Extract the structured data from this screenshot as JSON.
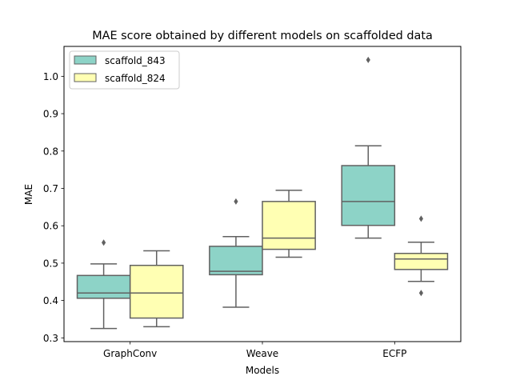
{
  "chart_data": {
    "type": "box",
    "title": "MAE score obtained by different models on scaffolded data",
    "xlabel": "Models",
    "ylabel": "MAE",
    "categories": [
      "GraphConv",
      "Weave",
      "ECFP"
    ],
    "ylim": [
      0.29,
      1.08
    ],
    "yticks": [
      0.3,
      0.4,
      0.5,
      0.6,
      0.7,
      0.8,
      0.9,
      1.0
    ],
    "ytick_labels": [
      "0.3",
      "0.4",
      "0.5",
      "0.6",
      "0.7",
      "0.8",
      "0.9",
      "1.0"
    ],
    "grid": false,
    "legend_position": "top-left",
    "series": [
      {
        "name": "scaffold_843",
        "color": "#8dd3c7",
        "boxes": [
          {
            "whisker_low": 0.325,
            "q1": 0.406,
            "median": 0.42,
            "q3": 0.467,
            "whisker_high": 0.498,
            "outliers": [
              0.555
            ]
          },
          {
            "whisker_low": 0.382,
            "q1": 0.469,
            "median": 0.478,
            "q3": 0.545,
            "whisker_high": 0.571,
            "outliers": [
              0.665
            ]
          },
          {
            "whisker_low": 0.567,
            "q1": 0.601,
            "median": 0.665,
            "q3": 0.761,
            "whisker_high": 0.814,
            "outliers": [
              1.044
            ]
          }
        ]
      },
      {
        "name": "scaffold_824",
        "color": "#ffffb3",
        "boxes": [
          {
            "whisker_low": 0.33,
            "q1": 0.353,
            "median": 0.42,
            "q3": 0.494,
            "whisker_high": 0.533,
            "outliers": []
          },
          {
            "whisker_low": 0.516,
            "q1": 0.537,
            "median": 0.567,
            "q3": 0.665,
            "whisker_high": 0.695,
            "outliers": []
          },
          {
            "whisker_low": 0.451,
            "q1": 0.483,
            "median": 0.511,
            "q3": 0.526,
            "whisker_high": 0.556,
            "outliers": [
              0.619,
              0.42
            ]
          }
        ]
      }
    ]
  }
}
